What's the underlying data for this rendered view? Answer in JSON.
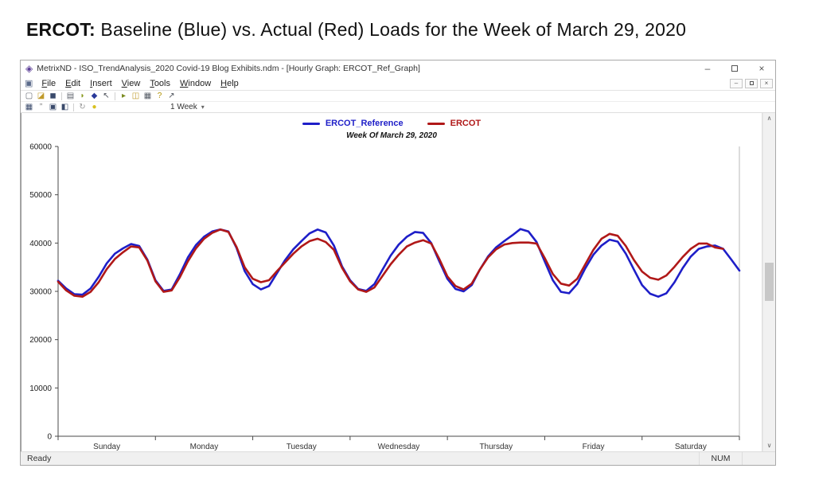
{
  "page": {
    "heading_bold": "ERCOT:",
    "heading_rest": " Baseline (Blue) vs. Actual (Red) Loads for the Week of March 29, 2020"
  },
  "window": {
    "title": "MetrixND - ISO_TrendAnalysis_2020 Covid-19 Blog Exhibits.ndm - [Hourly Graph: ERCOT_Ref_Graph]",
    "app_icon_glyph": "◈",
    "doc_icon_glyph": "▣",
    "controls": {
      "minimize": "–",
      "close": "×"
    },
    "menu": [
      "File",
      "Edit",
      "Insert",
      "View",
      "Tools",
      "Window",
      "Help"
    ],
    "toolbar1": [
      {
        "name": "new-document-icon",
        "glyph": "▢",
        "color": "#60656e"
      },
      {
        "name": "open-folder-icon",
        "glyph": "◪",
        "color": "#c09a2a"
      },
      {
        "name": "save-icon",
        "glyph": "◼",
        "color": "#3a4a6b"
      },
      {
        "type": "divider"
      },
      {
        "name": "print-preview-icon",
        "glyph": "▤",
        "color": "#60656e"
      },
      {
        "name": "data-link-icon",
        "glyph": "◗",
        "color": "#8a9a20"
      },
      {
        "name": "diamond-object-icon",
        "glyph": "◆",
        "color": "#2a3a9a"
      },
      {
        "name": "pointer-icon",
        "glyph": "↖",
        "color": "#4a4f58"
      },
      {
        "type": "divider"
      },
      {
        "name": "run-icon",
        "glyph": "▸",
        "color": "#7a8a20"
      },
      {
        "name": "export-icon",
        "glyph": "◫",
        "color": "#c09a2a"
      },
      {
        "name": "print-icon",
        "glyph": "▦",
        "color": "#565c66"
      },
      {
        "name": "help-icon",
        "glyph": "?",
        "color": "#b09000"
      },
      {
        "name": "select-mode-icon",
        "glyph": "↗",
        "color": "#4a4f58"
      }
    ],
    "toolbar2": [
      {
        "name": "table-icon",
        "glyph": "▦",
        "color": "#3a4a6b"
      },
      {
        "name": "quotes-icon",
        "glyph": "”",
        "color": "#777777"
      },
      {
        "name": "cascade-windows-icon",
        "glyph": "▣",
        "color": "#3a4a6b"
      },
      {
        "name": "tile-windows-icon",
        "glyph": "◧",
        "color": "#3a4a6b"
      },
      {
        "type": "divider"
      },
      {
        "name": "refresh-icon",
        "glyph": "↻",
        "color": "#999999"
      },
      {
        "name": "comment-icon",
        "glyph": "●",
        "color": "#d8c020"
      }
    ],
    "timescale_dropdown": {
      "label": "1 Week",
      "caret": "▾"
    },
    "scrollbar": {
      "up": "∧",
      "down": "∨"
    },
    "status_left": "Ready",
    "status_right": "NUM"
  },
  "chart_data": {
    "type": "line",
    "title": "Week Of March 29, 2020",
    "xlabel": "",
    "ylabel": "",
    "ylim": [
      0,
      60000
    ],
    "y_ticks": [
      0,
      10000,
      20000,
      30000,
      40000,
      50000,
      60000
    ],
    "x_hours_total": 168,
    "day_labels": [
      "Sunday",
      "Monday",
      "Tuesday",
      "Wednesday",
      "Thursday",
      "Friday",
      "Saturday"
    ],
    "x_step_hours": 2,
    "series": [
      {
        "name": "ERCOT_Reference",
        "color": "#1e1ec8",
        "values": [
          32200,
          30600,
          29400,
          29300,
          30600,
          33000,
          35800,
          37800,
          38900,
          39800,
          39400,
          36600,
          32300,
          30100,
          30400,
          33500,
          37000,
          39600,
          41300,
          42400,
          42800,
          42400,
          39000,
          34200,
          31500,
          30400,
          31100,
          33800,
          36500,
          38700,
          40400,
          42000,
          42800,
          42200,
          39500,
          35200,
          32300,
          30500,
          30100,
          31500,
          34500,
          37400,
          39700,
          41300,
          42300,
          42100,
          40000,
          36200,
          32600,
          30500,
          30000,
          31300,
          34500,
          37200,
          39100,
          40400,
          41600,
          42900,
          42400,
          40200,
          36200,
          32300,
          29900,
          29600,
          31500,
          34800,
          37600,
          39500,
          40700,
          40300,
          37800,
          34500,
          31300,
          29500,
          28900,
          29600,
          31900,
          34800,
          37200,
          38800,
          39300,
          39500,
          38800,
          36600,
          34300
        ]
      },
      {
        "name": "ERCOT",
        "color": "#b01818",
        "values": [
          32000,
          30200,
          29100,
          28900,
          29900,
          31900,
          34600,
          36700,
          38100,
          39300,
          39100,
          36400,
          32100,
          29900,
          30200,
          32900,
          36200,
          38900,
          40900,
          42100,
          42800,
          42300,
          39200,
          35000,
          32600,
          31900,
          32300,
          34200,
          36000,
          37800,
          39300,
          40400,
          40900,
          40200,
          38600,
          34900,
          32100,
          30400,
          29900,
          30800,
          33200,
          35600,
          37600,
          39300,
          40100,
          40600,
          39900,
          36700,
          33100,
          31100,
          30400,
          31600,
          34500,
          37000,
          38700,
          39700,
          40000,
          40100,
          40100,
          39900,
          36900,
          33600,
          31600,
          31200,
          32600,
          35600,
          38600,
          40900,
          41900,
          41500,
          39400,
          36500,
          34100,
          32800,
          32400,
          33300,
          35100,
          37100,
          38800,
          39900,
          39900,
          39100,
          38800,
          null,
          null
        ]
      }
    ]
  }
}
